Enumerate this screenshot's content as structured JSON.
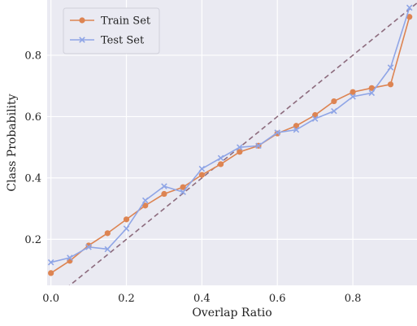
{
  "chart_data": {
    "type": "line",
    "xlabel": "Overlap Ratio",
    "ylabel": "Class Probability",
    "xlim": [
      -0.01,
      0.97
    ],
    "ylim": [
      0.05,
      0.98
    ],
    "x_ticks": [
      0.0,
      0.2,
      0.4,
      0.6,
      0.8
    ],
    "x_tick_labels": [
      "0.0",
      "0.2",
      "0.4",
      "0.6",
      "0.8"
    ],
    "y_ticks": [
      0.2,
      0.4,
      0.6,
      0.8
    ],
    "y_tick_labels": [
      "0.2",
      "0.4",
      "0.6",
      "0.8"
    ],
    "grid": true,
    "legend_position": "top-left",
    "background_color": "#eaeaf2",
    "series": [
      {
        "name": "Train Set",
        "color": "#dd8452",
        "marker": "circle",
        "x": [
          0.0,
          0.05,
          0.1,
          0.15,
          0.2,
          0.25,
          0.3,
          0.35,
          0.4,
          0.45,
          0.5,
          0.55,
          0.6,
          0.65,
          0.7,
          0.75,
          0.8,
          0.85,
          0.9,
          0.95
        ],
        "y": [
          0.09,
          0.13,
          0.18,
          0.22,
          0.265,
          0.31,
          0.348,
          0.37,
          0.41,
          0.445,
          0.485,
          0.505,
          0.545,
          0.57,
          0.605,
          0.65,
          0.68,
          0.693,
          0.705,
          0.925
        ]
      },
      {
        "name": "Test Set",
        "color": "#8fa5e6",
        "marker": "x",
        "x": [
          0.0,
          0.05,
          0.1,
          0.15,
          0.2,
          0.25,
          0.3,
          0.35,
          0.4,
          0.45,
          0.5,
          0.55,
          0.6,
          0.65,
          0.7,
          0.75,
          0.8,
          0.85,
          0.9,
          0.95
        ],
        "y": [
          0.125,
          0.14,
          0.175,
          0.168,
          0.235,
          0.327,
          0.373,
          0.354,
          0.43,
          0.465,
          0.5,
          0.505,
          0.548,
          0.557,
          0.593,
          0.618,
          0.665,
          0.677,
          0.76,
          0.955
        ]
      }
    ],
    "reference_line": {
      "style": "dashed",
      "color": "#8c6b7d",
      "x": [
        -0.01,
        0.97
      ],
      "y": [
        -0.01,
        0.97
      ]
    }
  }
}
